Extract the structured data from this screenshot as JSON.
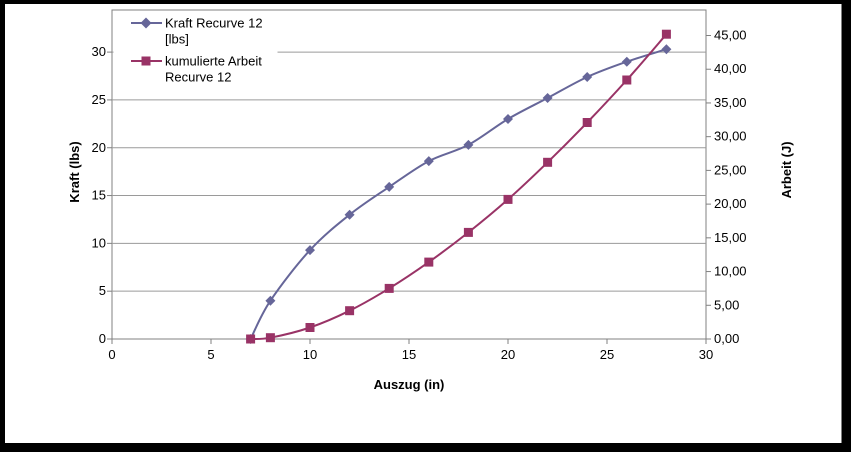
{
  "legend": {
    "series1_line1": "Kraft Recurve 12",
    "series1_line2": "[lbs]",
    "series2_line1": "kumulierte Arbeit",
    "series2_line2": "Recurve 12"
  },
  "axes": {
    "x_title": "Auszug (in)",
    "y_left_title": "Kraft (lbs)",
    "y_right_title": "Arbeit (J)"
  },
  "colors": {
    "series_kraft": "#666699",
    "series_arbeit": "#993366",
    "gridline": "#9a9a9a",
    "axis": "#808080",
    "frame": "#000000",
    "background": "#ffffff"
  },
  "chart_data": {
    "type": "line",
    "title": "",
    "xlabel": "Auszug (in)",
    "ylabel_left": "Kraft (lbs)",
    "ylabel_right": "Arbeit (J)",
    "grid": true,
    "smoothed_lines": true,
    "legend_position": "top-left-inside",
    "x_range": [
      0,
      30
    ],
    "y_left_range_visible": [
      0,
      30
    ],
    "y_right_range_visible": [
      0,
      45
    ],
    "x_ticks": [
      "0",
      "5",
      "10",
      "15",
      "20",
      "25",
      "30"
    ],
    "x_tick_values": [
      0,
      5,
      10,
      15,
      20,
      25,
      30
    ],
    "y_left_ticks": [
      "0",
      "5",
      "10",
      "15",
      "20",
      "25",
      "30"
    ],
    "y_left_tick_values": [
      0,
      5,
      10,
      15,
      20,
      25,
      30
    ],
    "y_right_ticks": [
      "0,00",
      "5,00",
      "10,00",
      "15,00",
      "20,00",
      "25,00",
      "30,00",
      "35,00",
      "40,00",
      "45,00"
    ],
    "y_right_tick_values": [
      0,
      5,
      10,
      15,
      20,
      25,
      30,
      35,
      40,
      45
    ],
    "x_shared": [
      7,
      8,
      10,
      12,
      14,
      16,
      18,
      20,
      22,
      24,
      26,
      28
    ],
    "series": [
      {
        "name": "Kraft Recurve 12 [lbs]",
        "axis": "left",
        "color": "#666699",
        "marker": "diamond",
        "x": [
          7,
          8,
          10,
          12,
          14,
          16,
          18,
          20,
          22,
          24,
          26,
          28
        ],
        "values": [
          0,
          4.0,
          9.3,
          13.0,
          15.9,
          18.6,
          20.3,
          23.0,
          25.2,
          27.4,
          29.0,
          30.3
        ]
      },
      {
        "name": "kumulierte Arbeit Recurve 12",
        "axis": "right",
        "color": "#993366",
        "marker": "square",
        "x": [
          7,
          8,
          10,
          12,
          14,
          16,
          18,
          20,
          22,
          24,
          26,
          28
        ],
        "values": [
          0,
          0.2,
          1.7,
          4.2,
          7.5,
          11.4,
          15.8,
          20.7,
          26.2,
          32.1,
          38.4,
          45.2
        ]
      }
    ]
  }
}
